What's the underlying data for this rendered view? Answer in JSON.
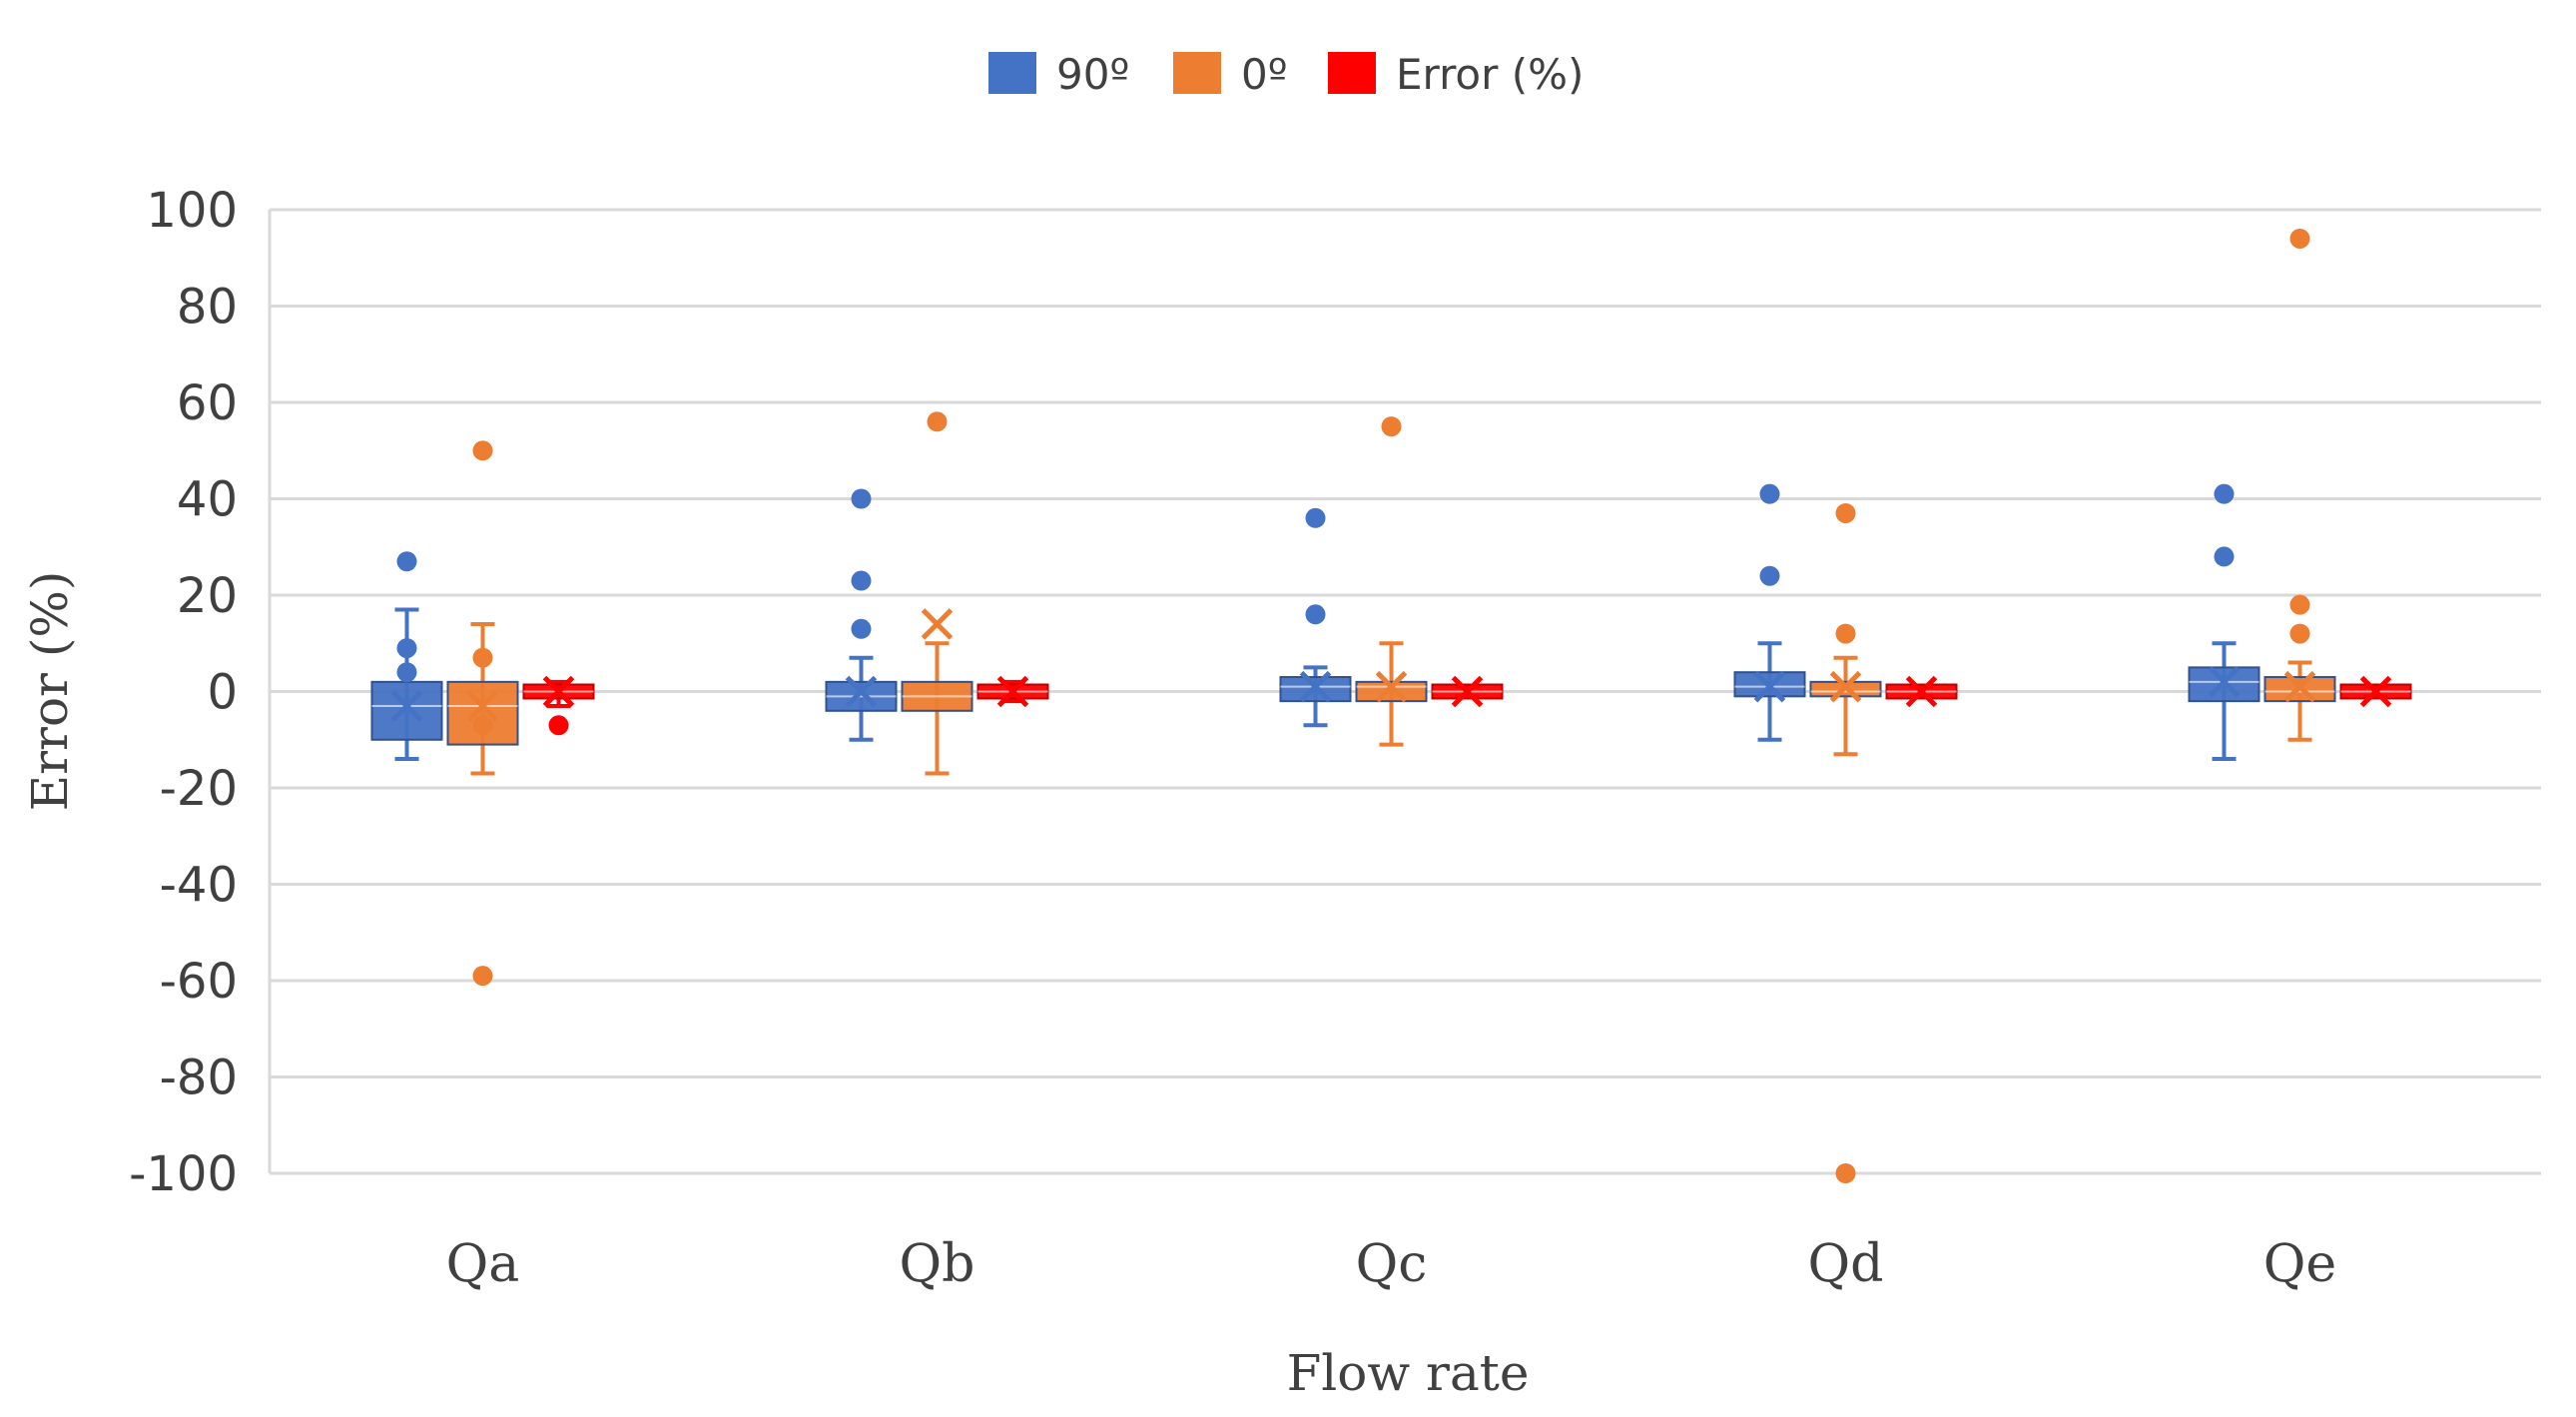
{
  "chart_data": {
    "type": "boxplot",
    "title": "",
    "xlabel": "Flow rate",
    "ylabel": "Error (%)",
    "ylim": [
      -100,
      100
    ],
    "yticks": [
      100,
      80,
      60,
      40,
      20,
      0,
      -20,
      -40,
      -60,
      -80,
      -100
    ],
    "categories": [
      "Qa",
      "Qb",
      "Qc",
      "Qd",
      "Qe"
    ],
    "legend_position": "top-center",
    "series": [
      {
        "name": "90º",
        "color": "#4472C4",
        "boxes": [
          {
            "min": -14,
            "q1": -10,
            "median": -3,
            "q3": 2,
            "max": 17,
            "mean": -3,
            "outliers": [
              27,
              9,
              4
            ]
          },
          {
            "min": -10,
            "q1": -4,
            "median": -1,
            "q3": 2,
            "max": 7,
            "mean": 0,
            "outliers": [
              40,
              23,
              13
            ]
          },
          {
            "min": -7,
            "q1": -2,
            "median": 1,
            "q3": 3,
            "max": 5,
            "mean": 1,
            "outliers": [
              36,
              16
            ]
          },
          {
            "min": -10,
            "q1": -1,
            "median": 1,
            "q3": 4,
            "max": 10,
            "mean": 1,
            "outliers": [
              41,
              24
            ]
          },
          {
            "min": -14,
            "q1": -2,
            "median": 2,
            "q3": 5,
            "max": 10,
            "mean": 2,
            "outliers": [
              41,
              28
            ]
          }
        ]
      },
      {
        "name": "0º",
        "color": "#ED7D31",
        "boxes": [
          {
            "min": -17,
            "q1": -11,
            "median": -3,
            "q3": 2,
            "max": 14,
            "mean": -3,
            "outliers": [
              50,
              -59,
              7,
              -7
            ]
          },
          {
            "min": -17,
            "q1": -4,
            "median": -1,
            "q3": 2,
            "max": 10,
            "mean": 14,
            "outliers": [
              56
            ]
          },
          {
            "min": -11,
            "q1": -2,
            "median": 1,
            "q3": 2,
            "max": 10,
            "mean": 1,
            "outliers": [
              55
            ]
          },
          {
            "min": -13,
            "q1": -1,
            "median": 0,
            "q3": 2,
            "max": 7,
            "mean": 1,
            "outliers": [
              37,
              12,
              -100
            ]
          },
          {
            "min": -10,
            "q1": -2,
            "median": 0,
            "q3": 3,
            "max": 6,
            "mean": 1,
            "outliers": [
              94,
              18,
              12
            ]
          }
        ]
      },
      {
        "name": "Error (%)",
        "color": "#FF0000",
        "boxes": [
          {
            "min": -3,
            "q1": -1,
            "median": 0,
            "q3": 1,
            "max": 2,
            "mean": 0,
            "outliers": [
              -7
            ]
          },
          {
            "min": -2,
            "q1": -1,
            "median": 0,
            "q3": 1,
            "max": 2,
            "mean": 0,
            "outliers": []
          },
          {
            "min": -1,
            "q1": -0.5,
            "median": 0,
            "q3": 0.5,
            "max": 1,
            "mean": 0,
            "outliers": []
          },
          {
            "min": -1,
            "q1": -0.5,
            "median": 0,
            "q3": 0.5,
            "max": 1,
            "mean": 0,
            "outliers": []
          },
          {
            "min": -1,
            "q1": -0.5,
            "median": 0,
            "q3": 0.5,
            "max": 1,
            "mean": 0,
            "outliers": []
          }
        ]
      }
    ]
  }
}
